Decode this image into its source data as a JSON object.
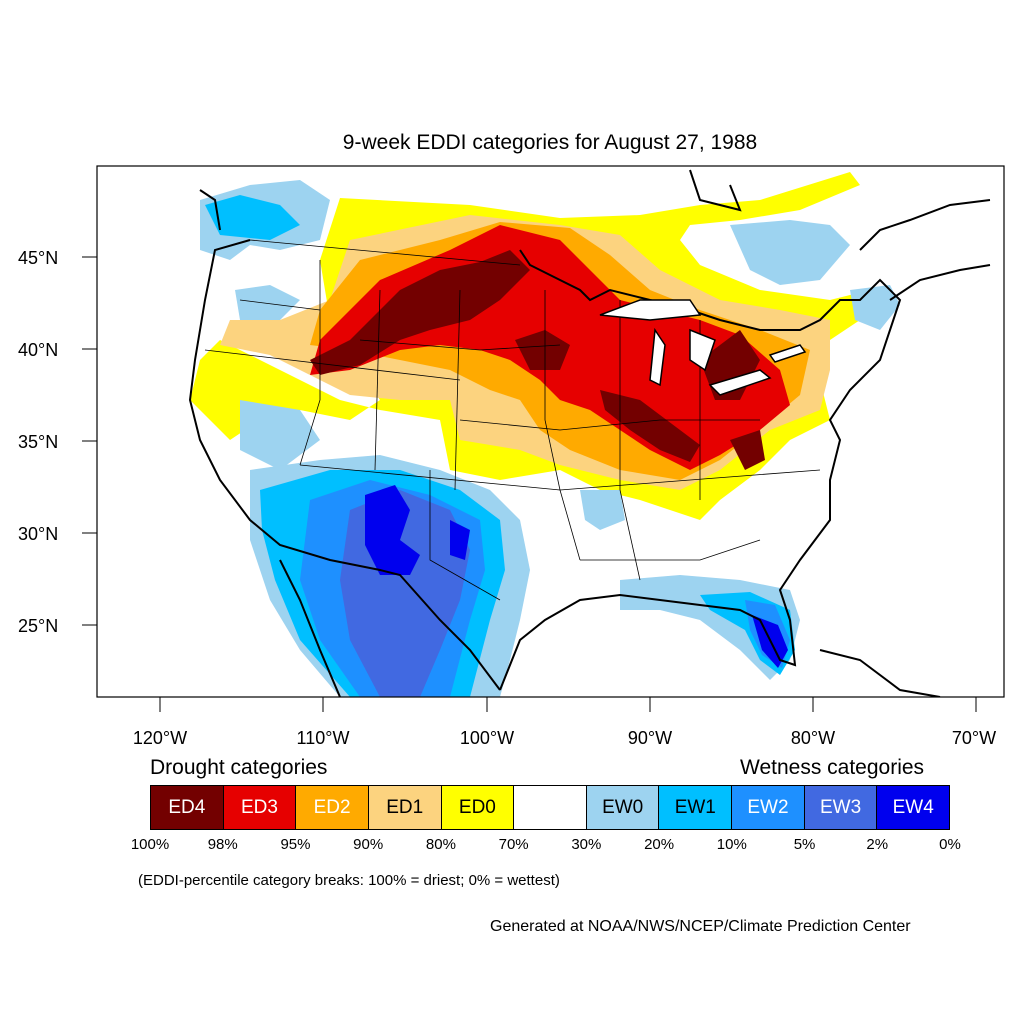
{
  "title": "9-week EDDI categories for August 27, 1988",
  "lat_labels": [
    "45°N",
    "40°N",
    "35°N",
    "30°N",
    "25°N"
  ],
  "lon_labels": [
    "120°W",
    "110°W",
    "100°W",
    "90°W",
    "80°W",
    "70°W"
  ],
  "legend": {
    "drought_heading": "Drought categories",
    "wetness_heading": "Wetness categories",
    "categories": [
      {
        "label": "ED4",
        "color": "#730000"
      },
      {
        "label": "ED3",
        "color": "#e60000"
      },
      {
        "label": "ED2",
        "color": "#ffaa00"
      },
      {
        "label": "ED1",
        "color": "#fcd37f"
      },
      {
        "label": "ED0",
        "color": "#ffff00"
      },
      {
        "label": "",
        "color": "#ffffff"
      },
      {
        "label": "EW0",
        "color": "#9dd3f0"
      },
      {
        "label": "EW1",
        "color": "#00bfff"
      },
      {
        "label": "EW2",
        "color": "#1e90ff"
      },
      {
        "label": "EW3",
        "color": "#4169e1"
      },
      {
        "label": "EW4",
        "color": "#0000ee"
      }
    ],
    "breaks": [
      "100%",
      "98%",
      "95%",
      "90%",
      "80%",
      "70%",
      "30%",
      "20%",
      "10%",
      "5%",
      "2%",
      "0%"
    ]
  },
  "note": "(EDDI-percentile category breaks: 100% = driest; 0% = wettest)",
  "credit": "Generated at NOAA/NWS/NCEP/Climate Prediction Center"
}
